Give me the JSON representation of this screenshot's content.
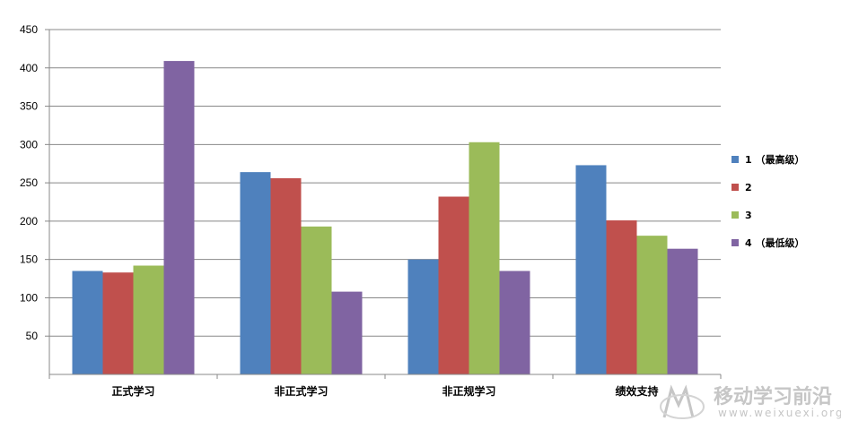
{
  "chart_data": {
    "type": "bar",
    "categories": [
      "正式学习",
      "非正式学习",
      "非正规学习",
      "绩效支持"
    ],
    "series": [
      {
        "name": "1 （最高级）",
        "color": "#4F81BD",
        "values": [
          135,
          264,
          150,
          273
        ]
      },
      {
        "name": "2",
        "color": "#C0504D",
        "values": [
          133,
          256,
          232,
          201
        ]
      },
      {
        "name": "3",
        "color": "#9BBB59",
        "values": [
          142,
          193,
          303,
          181
        ]
      },
      {
        "name": "4 （最低级）",
        "color": "#8064A2",
        "values": [
          409,
          108,
          135,
          164
        ]
      }
    ],
    "ylim": [
      0,
      450
    ],
    "yticks": [
      50,
      100,
      150,
      200,
      250,
      300,
      350,
      400,
      450
    ],
    "grid": true,
    "legend_position": "right"
  },
  "watermark": {
    "text": "移动学习前沿",
    "url": "www.weixuexi.org"
  }
}
